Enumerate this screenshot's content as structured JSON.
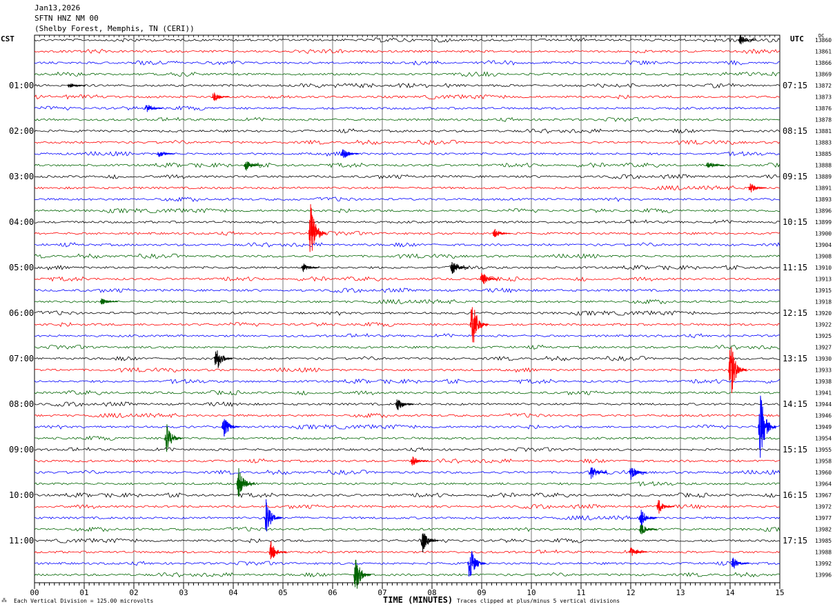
{
  "header": {
    "date": "Jan13,2026",
    "station": "SFTN HNZ NM 00",
    "location": "(Shelby Forest, Memphis, TN (CERI))"
  },
  "left_zone_label": "CST",
  "right_zone_label": "UTC",
  "dc_label": "DC",
  "footer": {
    "scale_note": "Each Vertical Division =  125.00 microvolts",
    "xlabel": "TIME (MINUTES)",
    "clip_note": "Traces clipped at plus/minus 5 vertical divisions"
  },
  "colors": {
    "trace_cycle": [
      "#000000",
      "#ff0000",
      "#0000ff",
      "#006400"
    ],
    "grid": "#000000"
  },
  "chart_data": {
    "type": "line",
    "title": "SFTN HNZ NM 00",
    "xlabel": "TIME (MINUTES)",
    "xlim": [
      0,
      15
    ],
    "x_ticks": [
      "00",
      "01",
      "02",
      "03",
      "04",
      "05",
      "06",
      "07",
      "08",
      "09",
      "10",
      "11",
      "12",
      "13",
      "14",
      "15"
    ],
    "left_hour_labels": [
      "01:00",
      "02:00",
      "03:00",
      "04:00",
      "05:00",
      "06:00",
      "07:00",
      "08:00",
      "09:00",
      "10:00",
      "11:00"
    ],
    "right_hour_labels": [
      "07:15",
      "08:15",
      "09:15",
      "10:15",
      "11:15",
      "12:15",
      "13:15",
      "14:15",
      "15:15",
      "16:15",
      "17:15"
    ],
    "dc_offsets": [
      13860,
      13861,
      13866,
      13869,
      13872,
      13873,
      13876,
      13878,
      13881,
      13883,
      13885,
      13888,
      13889,
      13891,
      13893,
      13896,
      13899,
      13900,
      13904,
      13908,
      13910,
      13913,
      13915,
      13918,
      13920,
      13922,
      13925,
      13927,
      13930,
      13933,
      13938,
      13941,
      13944,
      13946,
      13949,
      13954,
      13955,
      13958,
      13960,
      13964,
      13967,
      13972,
      13977,
      13982,
      13985,
      13988,
      13992,
      13996
    ],
    "events": [
      {
        "trace": 0,
        "minute": 14.25,
        "amp": 8
      },
      {
        "trace": 4,
        "minute": 0.75,
        "amp": 5
      },
      {
        "trace": 5,
        "minute": 3.65,
        "amp": 8
      },
      {
        "trace": 6,
        "minute": 2.3,
        "amp": 8
      },
      {
        "trace": 10,
        "minute": 2.55,
        "amp": 6
      },
      {
        "trace": 10,
        "minute": 6.25,
        "amp": 10
      },
      {
        "trace": 11,
        "minute": 4.3,
        "amp": 10
      },
      {
        "trace": 11,
        "minute": 13.6,
        "amp": 6
      },
      {
        "trace": 13,
        "minute": 14.45,
        "amp": 9
      },
      {
        "trace": 17,
        "minute": 5.6,
        "amp": 48
      },
      {
        "trace": 17,
        "minute": 9.3,
        "amp": 8
      },
      {
        "trace": 20,
        "minute": 5.45,
        "amp": 7
      },
      {
        "trace": 20,
        "minute": 8.45,
        "amp": 14
      },
      {
        "trace": 21,
        "minute": 9.05,
        "amp": 12
      },
      {
        "trace": 23,
        "minute": 1.4,
        "amp": 6
      },
      {
        "trace": 25,
        "minute": 8.85,
        "amp": 42
      },
      {
        "trace": 28,
        "minute": 3.7,
        "amp": 22
      },
      {
        "trace": 29,
        "minute": 14.05,
        "amp": 45
      },
      {
        "trace": 32,
        "minute": 7.35,
        "amp": 12
      },
      {
        "trace": 34,
        "minute": 3.85,
        "amp": 18
      },
      {
        "trace": 34,
        "minute": 14.65,
        "amp": 50
      },
      {
        "trace": 35,
        "minute": 2.7,
        "amp": 22
      },
      {
        "trace": 37,
        "minute": 7.65,
        "amp": 8
      },
      {
        "trace": 38,
        "minute": 11.25,
        "amp": 12
      },
      {
        "trace": 38,
        "minute": 12.05,
        "amp": 12
      },
      {
        "trace": 39,
        "minute": 4.15,
        "amp": 24
      },
      {
        "trace": 41,
        "minute": 12.6,
        "amp": 12
      },
      {
        "trace": 42,
        "minute": 4.7,
        "amp": 28
      },
      {
        "trace": 42,
        "minute": 12.25,
        "amp": 14
      },
      {
        "trace": 43,
        "minute": 12.25,
        "amp": 10
      },
      {
        "trace": 44,
        "minute": 7.85,
        "amp": 18
      },
      {
        "trace": 45,
        "minute": 4.8,
        "amp": 16
      },
      {
        "trace": 45,
        "minute": 12.05,
        "amp": 8
      },
      {
        "trace": 46,
        "minute": 8.8,
        "amp": 30
      },
      {
        "trace": 46,
        "minute": 14.1,
        "amp": 10
      },
      {
        "trace": 47,
        "minute": 6.5,
        "amp": 30
      }
    ]
  }
}
